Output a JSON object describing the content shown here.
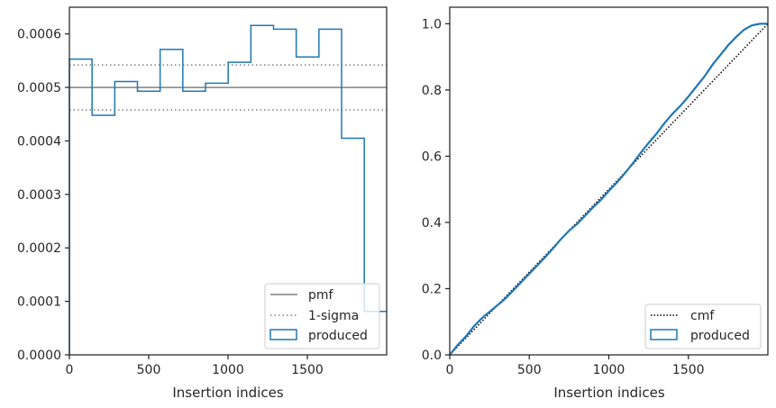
{
  "chart_data": [
    {
      "type": "histogram-step",
      "xlabel": "Insertion indices",
      "ylabel": "",
      "xlim": [
        0,
        2000
      ],
      "ylim": [
        0,
        0.00065
      ],
      "xticks": [
        0,
        500,
        1000,
        1500
      ],
      "yticks": [
        0,
        0.0001,
        0.0002,
        0.0003,
        0.0004,
        0.0005,
        0.0006
      ],
      "ytick_labels": [
        "0.0000",
        "0.0001",
        "0.0002",
        "0.0003",
        "0.0004",
        "0.0005",
        "0.0006"
      ],
      "xtick_labels": [
        "0",
        "500",
        "1000",
        "1500"
      ],
      "bin_edges": [
        0,
        143,
        286,
        429,
        572,
        715,
        858,
        1001,
        1144,
        1287,
        1430,
        1573,
        1716,
        1859,
        2000
      ],
      "values": [
        0.000553,
        0.000448,
        0.000511,
        0.000493,
        0.000571,
        0.000493,
        0.000508,
        0.000547,
        0.000616,
        0.000609,
        0.000557,
        0.000609,
        0.000405,
        8.13e-05
      ],
      "pmf": 0.0005,
      "sigma_upper": 0.000542,
      "sigma_lower": 0.000458,
      "legend": [
        "pmf",
        "1-sigma",
        "produced"
      ],
      "legend_position": "lower right",
      "colors": {
        "produced": "#1f77b4",
        "pmf": "#808080",
        "sigma": "#808080"
      }
    },
    {
      "type": "line",
      "xlabel": "Insertion indices",
      "ylabel": "",
      "xlim": [
        0,
        2000
      ],
      "ylim": [
        0,
        1.05
      ],
      "xticks": [
        0,
        500,
        1000,
        1500
      ],
      "xtick_labels": [
        "0",
        "500",
        "1000",
        "1500"
      ],
      "yticks": [
        0,
        0.2,
        0.4,
        0.6,
        0.8,
        1.0
      ],
      "ytick_labels": [
        "0.0",
        "0.2",
        "0.4",
        "0.6",
        "0.8",
        "1.0"
      ],
      "cmf": {
        "x": [
          0,
          2000
        ],
        "y": [
          0,
          1.0
        ]
      },
      "produced": {
        "x": [
          0,
          50,
          100,
          150,
          200,
          250,
          300,
          350,
          400,
          450,
          500,
          550,
          600,
          650,
          700,
          750,
          800,
          850,
          900,
          950,
          1000,
          1050,
          1100,
          1150,
          1200,
          1250,
          1300,
          1350,
          1400,
          1450,
          1500,
          1550,
          1600,
          1650,
          1700,
          1750,
          1800,
          1850,
          1900,
          1950,
          2000
        ],
        "y": [
          0,
          0.03,
          0.055,
          0.085,
          0.11,
          0.13,
          0.15,
          0.17,
          0.195,
          0.22,
          0.245,
          0.27,
          0.295,
          0.322,
          0.35,
          0.375,
          0.395,
          0.42,
          0.445,
          0.468,
          0.495,
          0.52,
          0.548,
          0.578,
          0.61,
          0.64,
          0.668,
          0.7,
          0.728,
          0.752,
          0.78,
          0.81,
          0.84,
          0.875,
          0.905,
          0.935,
          0.96,
          0.982,
          0.995,
          1.0,
          1.0
        ]
      },
      "legend": [
        "cmf",
        "produced"
      ],
      "legend_position": "lower right",
      "colors": {
        "produced": "#1f77b4",
        "cmf": "#000000"
      }
    }
  ]
}
